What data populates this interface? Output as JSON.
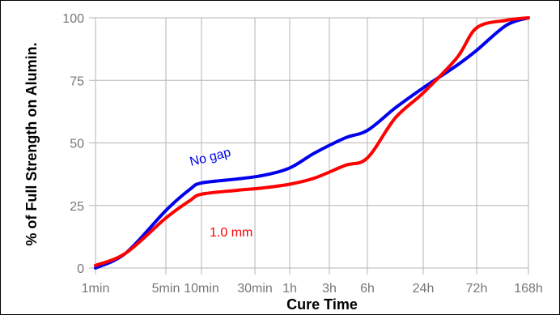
{
  "chart_data": {
    "type": "line",
    "title": "",
    "xlabel": "Cure Time",
    "ylabel": "% of Full Strength on Alumin.",
    "x_scale": "log",
    "x_tick_labels": [
      "1min",
      "5min",
      "10min",
      "30min",
      "1h",
      "3h",
      "6h",
      "24h",
      "72h",
      "168h"
    ],
    "x_tick_values_min": [
      1,
      5,
      10,
      30,
      60,
      180,
      360,
      1440,
      4320,
      10080
    ],
    "y_ticks": [
      0,
      25,
      50,
      75,
      100
    ],
    "ylim": [
      0,
      100
    ],
    "grid": true,
    "legend": "none",
    "annotations": [
      {
        "text": "No gap",
        "color": "#0000ee"
      },
      {
        "text": "1.0 mm",
        "color": "#ff0000"
      }
    ],
    "series": [
      {
        "name": "No gap",
        "color": "#0000ee",
        "x_min": [
          1,
          2,
          5,
          8,
          10,
          20,
          35,
          60,
          120,
          240,
          360,
          720,
          1440,
          2880,
          4320,
          7000,
          10080
        ],
        "y": [
          0,
          6,
          23,
          31.5,
          34,
          35.5,
          37,
          40,
          46,
          52,
          55,
          64,
          72,
          81,
          87,
          97,
          100
        ]
      },
      {
        "name": "1.0 mm",
        "color": "#ff0000",
        "x_min": [
          1,
          2,
          5,
          8,
          10,
          20,
          35,
          60,
          120,
          240,
          360,
          720,
          1440,
          2880,
          4320,
          7000,
          10080
        ],
        "y": [
          1,
          6,
          20,
          27,
          29.5,
          31,
          32,
          33.5,
          36,
          41,
          44,
          60,
          70,
          84,
          96,
          99,
          100
        ]
      }
    ]
  }
}
